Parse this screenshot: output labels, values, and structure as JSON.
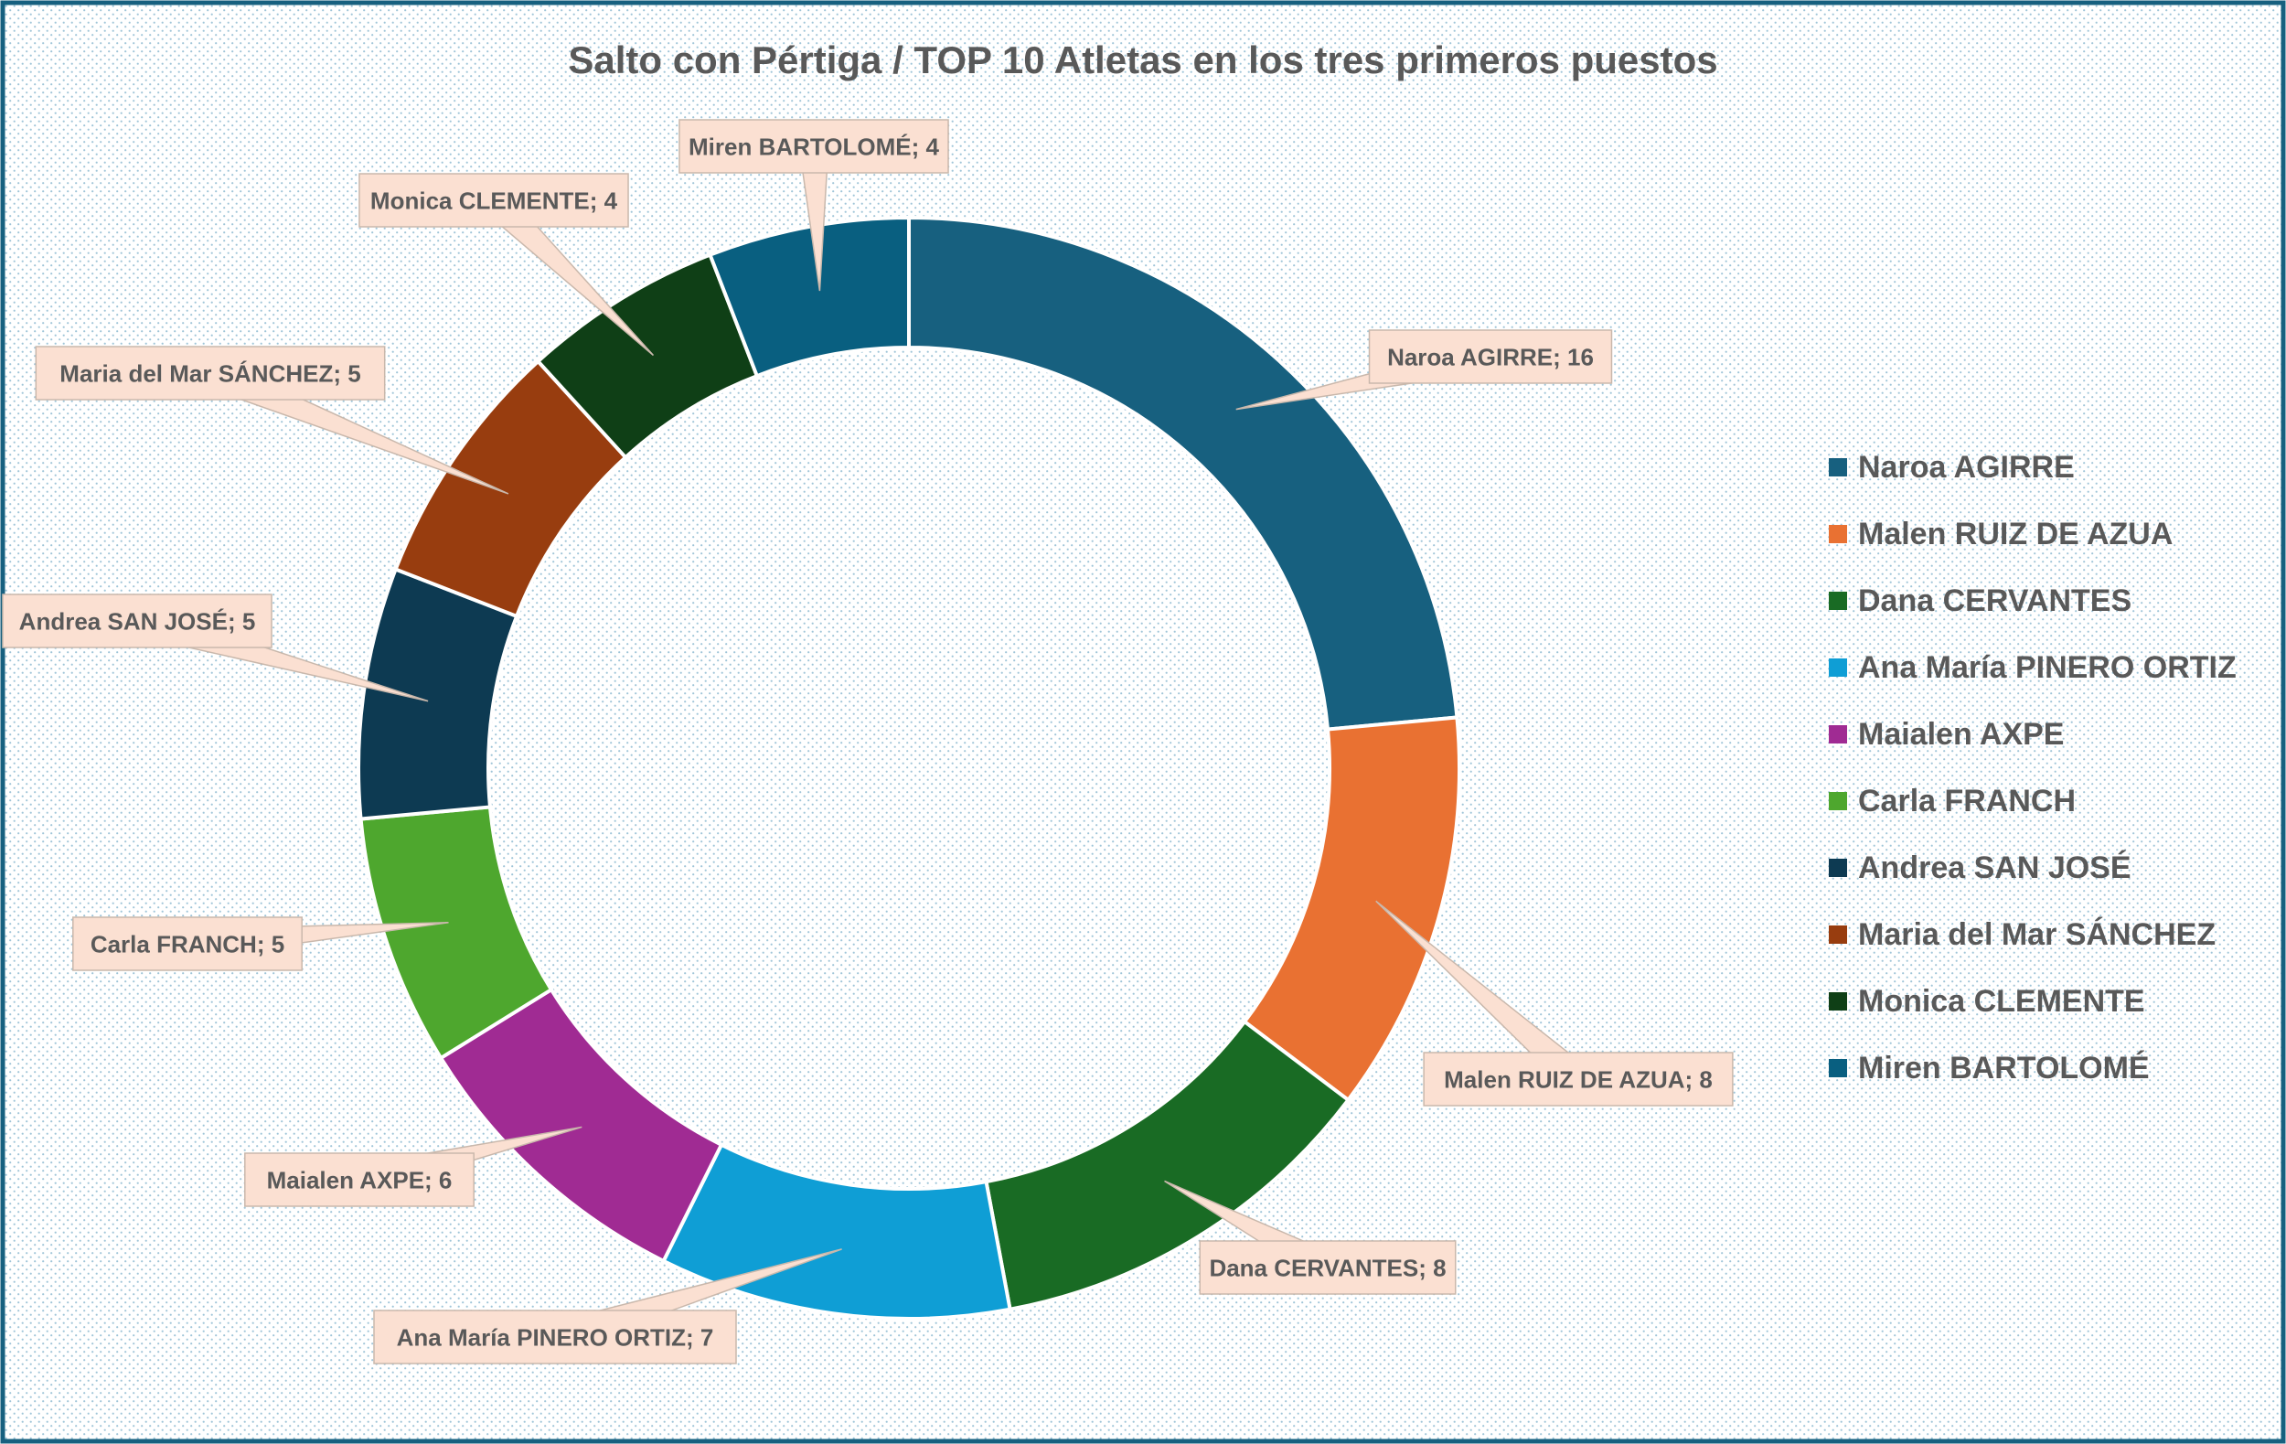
{
  "chart_data": {
    "type": "pie",
    "variant": "doughnut",
    "title": "Salto con Pértiga / TOP 10 Atletas en los tres primeros puestos",
    "legend_position": "right",
    "label_format": "{name}; {value}",
    "categories": [
      "Naroa AGIRRE",
      "Malen RUIZ DE AZUA",
      "Dana CERVANTES",
      "Ana María PINERO ORTIZ",
      "Maialen AXPE",
      "Carla FRANCH",
      "Andrea SAN JOSÉ",
      "Maria del Mar SÁNCHEZ",
      "Monica CLEMENTE",
      "Miren BARTOLOMÉ"
    ],
    "values": [
      16,
      8,
      8,
      7,
      6,
      5,
      5,
      5,
      4,
      4
    ],
    "colors": [
      "#17607F",
      "#E97132",
      "#196B24",
      "#0F9ED5",
      "#A02B93",
      "#4EA72E",
      "#0D3A52",
      "#983D0F",
      "#0F3F16",
      "#095F80"
    ],
    "label_background": "#FBE0D2",
    "background_pattern_color": "#9FC5D8",
    "border_color": "#17607F",
    "text_color": "#595959"
  }
}
